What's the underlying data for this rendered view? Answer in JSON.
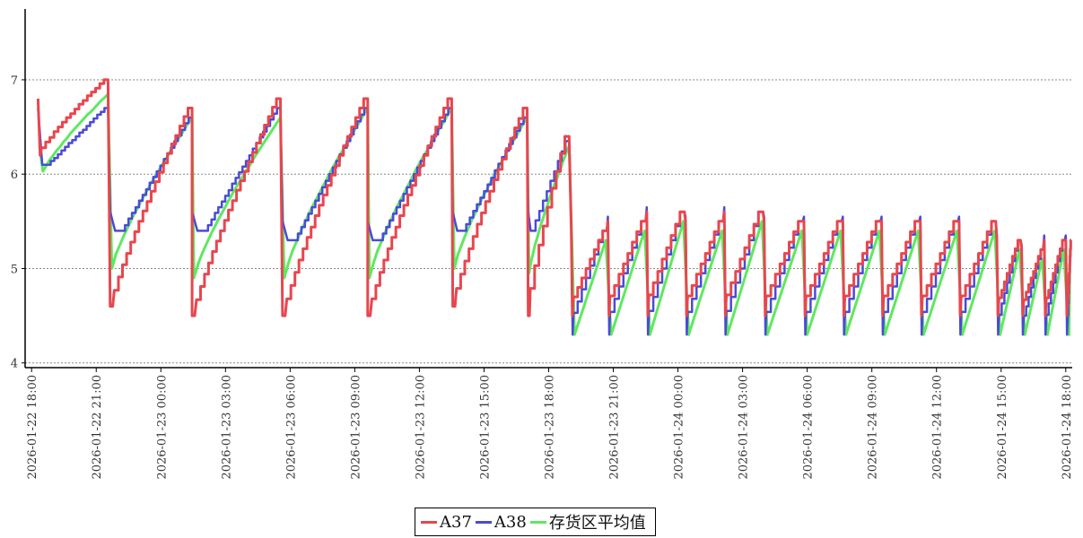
{
  "chart_data": {
    "type": "line",
    "x_ticks": [
      "2026-01-22 18:00",
      "2026-01-22 21:00",
      "2026-01-23 00:00",
      "2026-01-23 03:00",
      "2026-01-23 06:00",
      "2026-01-23 09:00",
      "2026-01-23 12:00",
      "2026-01-23 15:00",
      "2026-01-23 18:00",
      "2026-01-23 21:00",
      "2026-01-24 00:00",
      "2026-01-24 03:00",
      "2026-01-24 06:00",
      "2026-01-24 09:00",
      "2026-01-24 12:00",
      "2026-01-24 15:00",
      "2026-01-24 18:00"
    ],
    "y_ticks": [
      "4",
      "5",
      "6",
      "7"
    ],
    "ylim": [
      3.95,
      7.75
    ],
    "x_range_hours": [
      -0.3,
      48.3
    ],
    "grid": "horizontal dotted",
    "legend_position": "bottom-center",
    "series": [
      {
        "name": "A37",
        "color": "#e8464e"
      },
      {
        "name": "A38",
        "color": "#4a4ad8"
      },
      {
        "name": "存货区平均值",
        "color": "#5fe85f"
      }
    ],
    "cycles": [
      {
        "t0": 0.3,
        "t1": 3.55,
        "r": [
          6.8,
          6.2,
          7.0
        ],
        "b": [
          6.7,
          6.1,
          6.7
        ],
        "g": [
          6.3,
          5.95,
          6.85
        ]
      },
      {
        "t0": 3.65,
        "t1": 7.45,
        "r": [
          4.6,
          4.6,
          6.7
        ],
        "b": [
          5.6,
          5.4,
          6.6
        ],
        "g": [
          5.0,
          5.0,
          6.6
        ]
      },
      {
        "t0": 7.45,
        "t1": 11.55,
        "r": [
          4.5,
          4.5,
          6.8
        ],
        "b": [
          5.6,
          5.4,
          6.7
        ],
        "g": [
          4.9,
          4.9,
          6.6
        ]
      },
      {
        "t0": 11.65,
        "t1": 15.6,
        "r": [
          4.5,
          4.5,
          6.8
        ],
        "b": [
          5.5,
          5.3,
          6.7
        ],
        "g": [
          4.9,
          4.9,
          6.7
        ]
      },
      {
        "t0": 15.6,
        "t1": 19.5,
        "r": [
          4.5,
          4.5,
          6.8
        ],
        "b": [
          5.5,
          5.3,
          6.7
        ],
        "g": [
          4.9,
          4.9,
          6.7
        ]
      },
      {
        "t0": 19.55,
        "t1": 23.0,
        "r": [
          4.6,
          4.6,
          6.7
        ],
        "b": [
          5.6,
          5.4,
          6.6
        ],
        "g": [
          5.0,
          5.0,
          6.6
        ]
      },
      {
        "t0": 23.05,
        "t1": 24.95,
        "r": [
          4.5,
          4.5,
          6.4
        ],
        "b": [
          5.6,
          5.4,
          6.35
        ],
        "g": [
          4.95,
          4.95,
          6.3
        ]
      }
    ],
    "saws": [
      25.05,
      26.75,
      28.55,
      30.35,
      32.15,
      34.0,
      35.85,
      37.65,
      39.45,
      41.25,
      43.05,
      44.8,
      45.95,
      47.0,
      48.0
    ],
    "saw_a37_peaks": [
      5.4,
      5.5,
      5.6,
      5.5,
      5.6,
      5.5,
      5.5,
      5.5,
      5.5,
      5.5,
      5.5,
      5.3,
      5.2,
      5.3,
      5.3
    ]
  },
  "legend": {
    "a37": "A37",
    "a38": "A38",
    "avg": "存货区平均值"
  }
}
